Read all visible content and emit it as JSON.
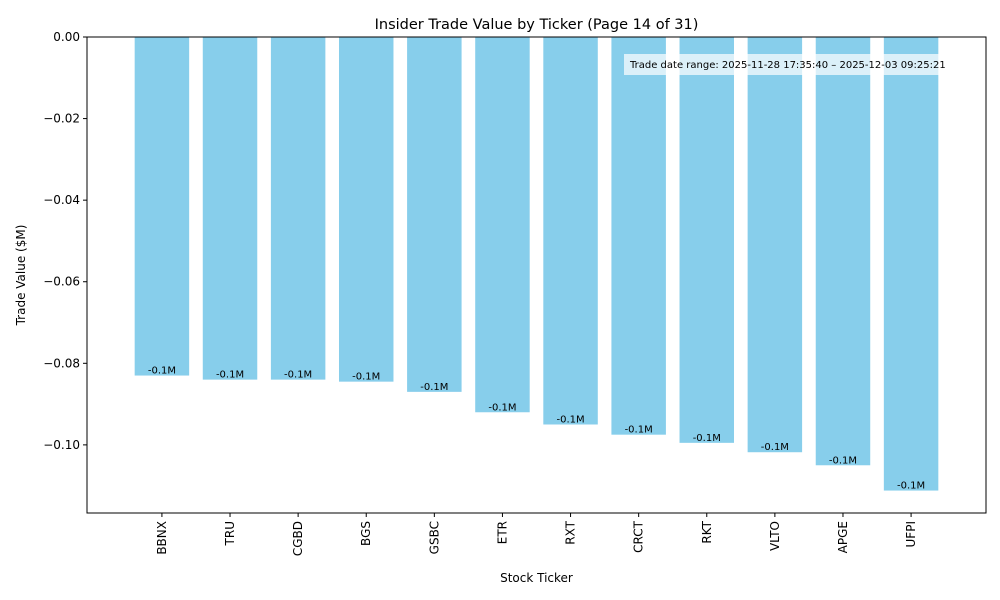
{
  "chart_data": {
    "type": "bar",
    "title": "Insider Trade Value by Ticker (Page 14 of 31)",
    "xlabel": "Stock Ticker",
    "ylabel": "Trade Value ($M)",
    "categories": [
      "BBNX",
      "TRU",
      "CGBD",
      "BGS",
      "GSBC",
      "ETR",
      "RXT",
      "CRCT",
      "RKT",
      "VLTO",
      "APGE",
      "UFPI"
    ],
    "values": [
      -0.083,
      -0.084,
      -0.084,
      -0.0845,
      -0.087,
      -0.092,
      -0.095,
      -0.0975,
      -0.0995,
      -0.1018,
      -0.105,
      -0.1112
    ],
    "data_labels": [
      "-0.1M",
      "-0.1M",
      "-0.1M",
      "-0.1M",
      "-0.1M",
      "-0.1M",
      "-0.1M",
      "-0.1M",
      "-0.1M",
      "-0.1M",
      "-0.1M",
      "-0.1M"
    ],
    "ylim": [
      -0.1167,
      0.0
    ],
    "yticks": [
      0.0,
      -0.02,
      -0.04,
      -0.06,
      -0.08,
      -0.1
    ],
    "ytick_labels": [
      "0.00",
      "−0.02",
      "−0.04",
      "−0.06",
      "−0.08",
      "−0.10"
    ],
    "annotation": "Trade date range: 2025-11-28 17:35:40 – 2025-12-03 09:25:21",
    "annotation_position": "top-right",
    "bar_color": "#87CEEB",
    "grid": false
  }
}
